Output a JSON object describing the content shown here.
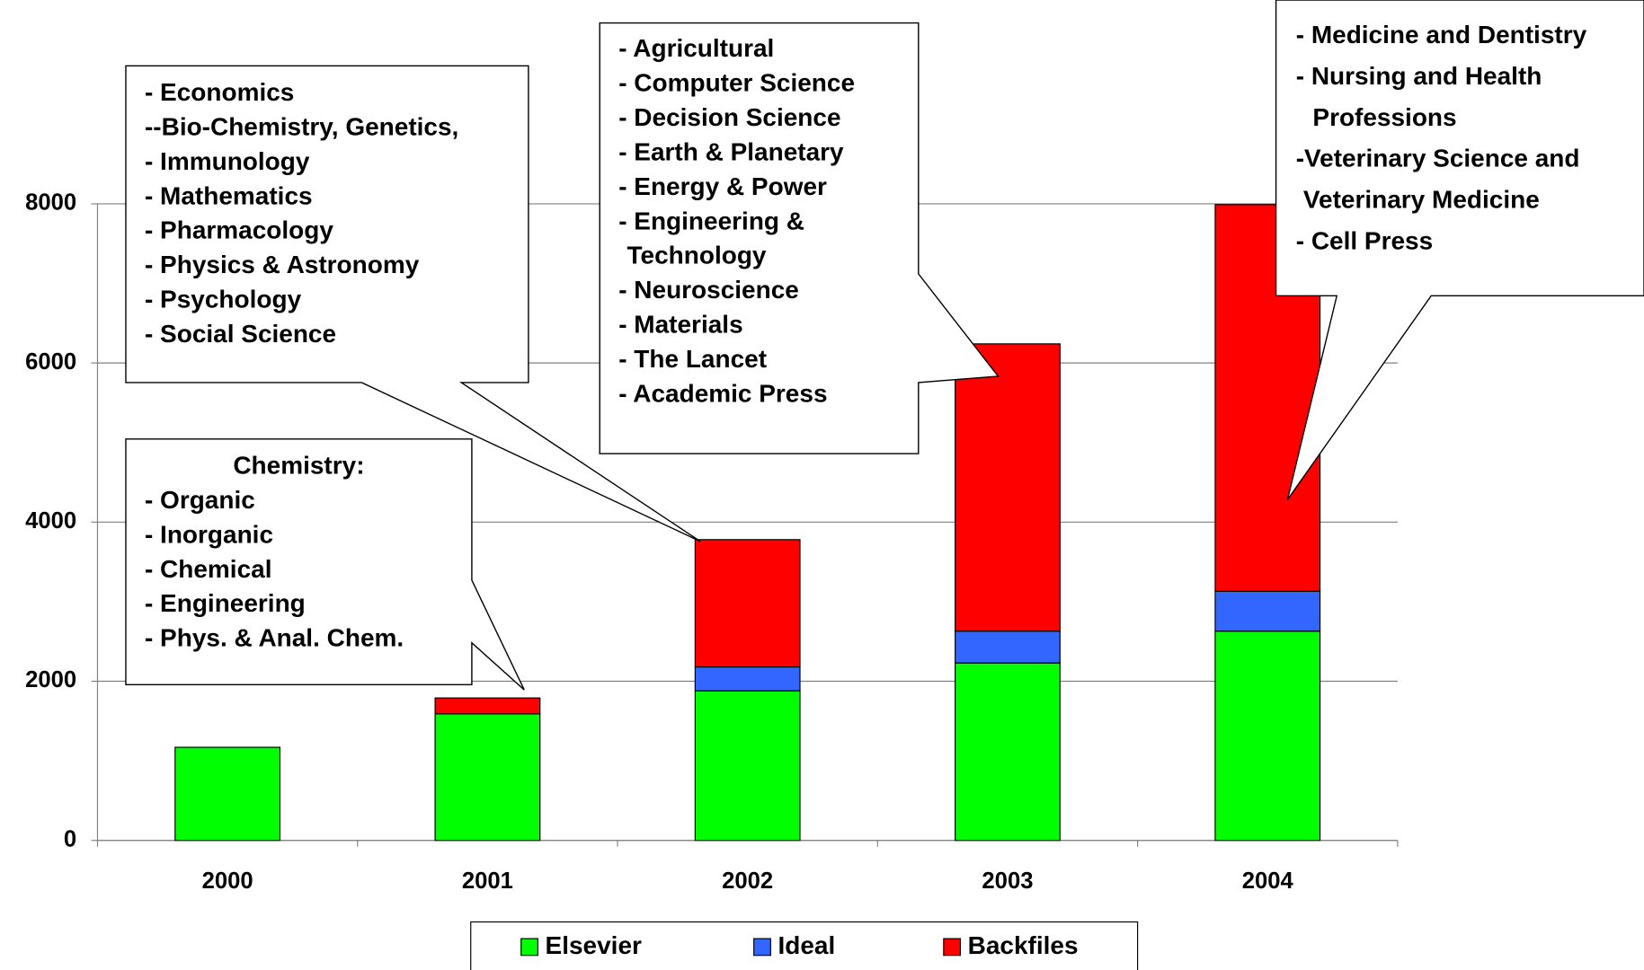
{
  "chart_data": {
    "type": "stacked_bar",
    "categories": [
      "2000",
      "2001",
      "2002",
      "2003",
      "2004"
    ],
    "series": [
      {
        "name": "Elsevier",
        "color": "#00ff00",
        "values": [
          1170,
          1590,
          1880,
          2230,
          2630
        ]
      },
      {
        "name": "Ideal",
        "color": "#3366ff",
        "values": [
          0,
          0,
          300,
          400,
          500
        ]
      },
      {
        "name": "Backfiles",
        "color": "#ff0000",
        "values": [
          0,
          200,
          1600,
          3610,
          4860
        ]
      }
    ],
    "ylim": [
      0,
      8000
    ],
    "yticks": [
      0,
      2000,
      4000,
      6000,
      8000
    ],
    "grid": true,
    "legend": "bottom",
    "annotations": [
      {
        "lines": [
          "- Economics",
          "--Bio-Chemistry, Genetics,",
          "- Immunology",
          "- Mathematics",
          "- Pharmacology",
          "- Physics & Astronomy",
          "- Psychology",
          "- Social Science"
        ]
      },
      {
        "lines": [
          "Chemistry:",
          "- Organic",
          "- Inorganic",
          "- Chemical",
          "- Engineering",
          "- Phys. & Anal. Chem."
        ]
      },
      {
        "lines": [
          "- Agricultural",
          "- Computer Science",
          "- Decision Science",
          "- Earth & Planetary",
          "- Energy & Power",
          "- Engineering &",
          "Technology",
          "- Neuroscience",
          "- Materials",
          "- The Lancet",
          "- Academic Press"
        ]
      },
      {
        "lines": [
          "- Medicine and Dentistry",
          "- Nursing and Health",
          "Professions",
          "-Veterinary Science and",
          "Veterinary Medicine",
          "- Cell Press"
        ]
      }
    ]
  }
}
